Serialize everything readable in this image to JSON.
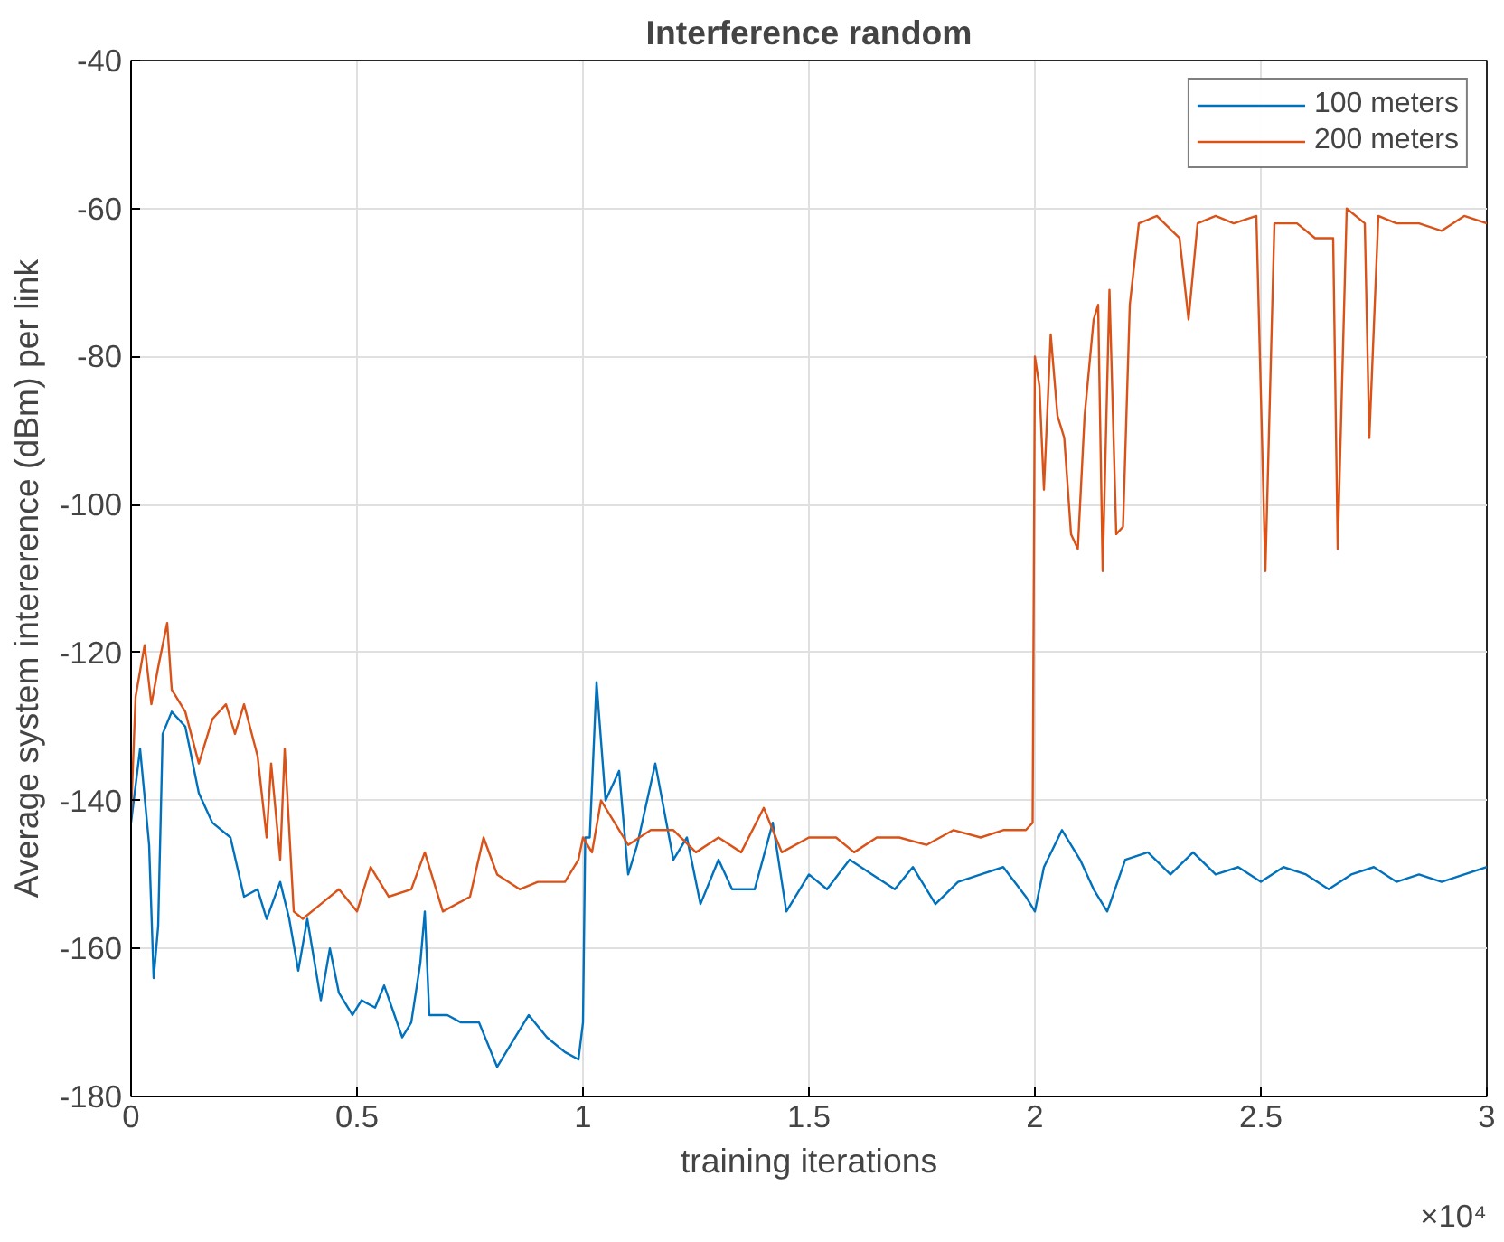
{
  "chart_data": {
    "type": "line",
    "title": "Interference random",
    "xlabel": "training iterations",
    "ylabel": "Average system intererence (dBm) per link",
    "annotations": [
      "×10⁴"
    ],
    "series": [
      {
        "name": "100 meters",
        "color": "#0072bd",
        "x": [
          0,
          0.02,
          0.04,
          0.05,
          0.06,
          0.07,
          0.09,
          0.12,
          0.15,
          0.18,
          0.22,
          0.25,
          0.28,
          0.3,
          0.33,
          0.35,
          0.37,
          0.39,
          0.42,
          0.44,
          0.46,
          0.49,
          0.51,
          0.54,
          0.56,
          0.6,
          0.62,
          0.64,
          0.65,
          0.66,
          0.7,
          0.73,
          0.77,
          0.81,
          0.84,
          0.88,
          0.92,
          0.96,
          0.99,
          1,
          1.005,
          1.015,
          1.03,
          1.05,
          1.08,
          1.1,
          1.12,
          1.16,
          1.2,
          1.23,
          1.26,
          1.3,
          1.33,
          1.38,
          1.42,
          1.45,
          1.5,
          1.54,
          1.59,
          1.64,
          1.69,
          1.73,
          1.78,
          1.83,
          1.88,
          1.93,
          1.98,
          2,
          2.02,
          2.06,
          2.1,
          2.13,
          2.16,
          2.2,
          2.25,
          2.3,
          2.35,
          2.4,
          2.45,
          2.5,
          2.55,
          2.6,
          2.65,
          2.7,
          2.75,
          2.8,
          2.85,
          2.9,
          2.95,
          3
        ],
        "values": [
          -143,
          -133,
          -146,
          -164,
          -157,
          -131,
          -128,
          -130,
          -139,
          -143,
          -145,
          -153,
          -152,
          -156,
          -151,
          -156,
          -163,
          -156,
          -167,
          -160,
          -166,
          -169,
          -167,
          -168,
          -165,
          -172,
          -170,
          -162,
          -155,
          -169,
          -169,
          -170,
          -170,
          -176,
          -173,
          -169,
          -172,
          -174,
          -175,
          -170,
          -145,
          -145,
          -124,
          -140,
          -136,
          -150,
          -146,
          -135,
          -148,
          -145,
          -154,
          -148,
          -152,
          -152,
          -143,
          -155,
          -150,
          -152,
          -148,
          -150,
          -152,
          -149,
          -154,
          -151,
          -150,
          -149,
          -153,
          -155,
          -149,
          -144,
          -148,
          -152,
          -155,
          -148,
          -147,
          -150,
          -147,
          -150,
          -149,
          -151,
          -149,
          -150,
          -152,
          -150,
          -149,
          -151,
          -150,
          -151,
          -150,
          -149
        ]
      },
      {
        "name": "200 meters",
        "color": "#d95319",
        "x": [
          0,
          0.01,
          0.03,
          0.045,
          0.06,
          0.08,
          0.09,
          0.12,
          0.15,
          0.18,
          0.21,
          0.23,
          0.25,
          0.28,
          0.3,
          0.31,
          0.33,
          0.34,
          0.36,
          0.38,
          0.42,
          0.46,
          0.5,
          0.53,
          0.57,
          0.62,
          0.65,
          0.69,
          0.75,
          0.78,
          0.81,
          0.86,
          0.9,
          0.96,
          0.99,
          1,
          1.02,
          1.04,
          1.07,
          1.1,
          1.15,
          1.2,
          1.25,
          1.3,
          1.35,
          1.4,
          1.44,
          1.5,
          1.56,
          1.6,
          1.65,
          1.7,
          1.76,
          1.82,
          1.88,
          1.93,
          1.98,
          1.995,
          2,
          2.01,
          2.02,
          2.035,
          2.05,
          2.065,
          2.08,
          2.095,
          2.11,
          2.13,
          2.14,
          2.15,
          2.165,
          2.18,
          2.195,
          2.21,
          2.23,
          2.27,
          2.32,
          2.34,
          2.36,
          2.4,
          2.44,
          2.49,
          2.51,
          2.53,
          2.58,
          2.62,
          2.66,
          2.67,
          2.69,
          2.73,
          2.74,
          2.76,
          2.8,
          2.85,
          2.9,
          2.95,
          3
        ],
        "values": [
          -142,
          -126,
          -119,
          -127,
          -122,
          -116,
          -125,
          -128,
          -135,
          -129,
          -127,
          -131,
          -127,
          -134,
          -145,
          -135,
          -148,
          -133,
          -155,
          -156,
          -154,
          -152,
          -155,
          -149,
          -153,
          -152,
          -147,
          -155,
          -153,
          -145,
          -150,
          -152,
          -151,
          -151,
          -148,
          -145,
          -147,
          -140,
          -143,
          -146,
          -144,
          -144,
          -147,
          -145,
          -147,
          -141,
          -147,
          -145,
          -145,
          -147,
          -145,
          -145,
          -146,
          -144,
          -145,
          -144,
          -144,
          -143,
          -80,
          -84,
          -98,
          -77,
          -88,
          -91,
          -104,
          -106,
          -88,
          -75,
          -73,
          -109,
          -71,
          -104,
          -103,
          -73,
          -62,
          -61,
          -64,
          -75,
          -62,
          -61,
          -62,
          -61,
          -109,
          -62,
          -62,
          -64,
          -64,
          -106,
          -60,
          -62,
          -91,
          -61,
          -62,
          -62,
          -63,
          -61,
          -62
        ]
      }
    ],
    "xlim": [
      0,
      3
    ],
    "xticks": [
      0,
      0.5,
      1,
      1.5,
      2,
      2.5,
      3
    ],
    "ylim": [
      -180,
      -40
    ],
    "yticks": [
      -180,
      -160,
      -140,
      -120,
      -100,
      -80,
      -60,
      -40
    ],
    "grid": true,
    "legend": "top right"
  }
}
